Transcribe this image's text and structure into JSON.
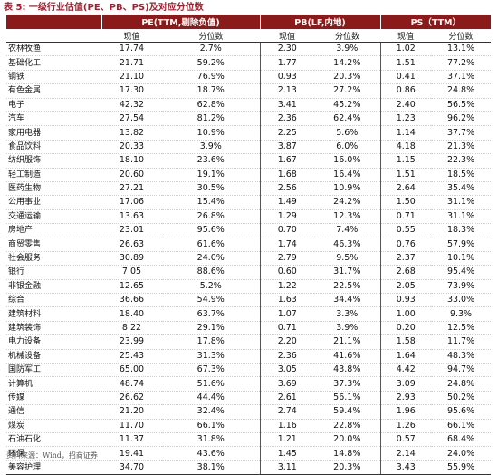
{
  "caption": "表 5: 一级行业估值(PE、PB、PS)及对应分位数",
  "headers": {
    "group_pe": "PE(TTM,剔除负值)",
    "group_pb": "PB(LF,内地)",
    "group_ps": "PS（TTM）",
    "sub_value": "现值",
    "sub_percentile": "分位数"
  },
  "rows": [
    {
      "industry": "农林牧渔",
      "pe": "17.74",
      "pe_pct": "2.7%",
      "pb": "2.30",
      "pb_pct": "3.9%",
      "ps": "1.02",
      "ps_pct": "13.1%"
    },
    {
      "industry": "基础化工",
      "pe": "21.71",
      "pe_pct": "59.2%",
      "pb": "1.77",
      "pb_pct": "14.2%",
      "ps": "1.51",
      "ps_pct": "77.2%"
    },
    {
      "industry": "钢铁",
      "pe": "21.10",
      "pe_pct": "76.9%",
      "pb": "0.93",
      "pb_pct": "20.3%",
      "ps": "0.41",
      "ps_pct": "37.1%"
    },
    {
      "industry": "有色金属",
      "pe": "17.30",
      "pe_pct": "18.7%",
      "pb": "2.13",
      "pb_pct": "27.2%",
      "ps": "0.86",
      "ps_pct": "24.8%"
    },
    {
      "industry": "电子",
      "pe": "42.32",
      "pe_pct": "62.8%",
      "pb": "3.41",
      "pb_pct": "45.2%",
      "ps": "2.40",
      "ps_pct": "56.5%"
    },
    {
      "industry": "汽车",
      "pe": "27.54",
      "pe_pct": "81.2%",
      "pb": "2.36",
      "pb_pct": "62.4%",
      "ps": "1.23",
      "ps_pct": "96.2%"
    },
    {
      "industry": "家用电器",
      "pe": "13.82",
      "pe_pct": "10.9%",
      "pb": "2.25",
      "pb_pct": "5.6%",
      "ps": "1.14",
      "ps_pct": "37.7%"
    },
    {
      "industry": "食品饮料",
      "pe": "20.33",
      "pe_pct": "3.9%",
      "pb": "3.87",
      "pb_pct": "6.0%",
      "ps": "4.18",
      "ps_pct": "21.3%"
    },
    {
      "industry": "纺织服饰",
      "pe": "18.10",
      "pe_pct": "23.6%",
      "pb": "1.67",
      "pb_pct": "16.0%",
      "ps": "1.15",
      "ps_pct": "22.3%"
    },
    {
      "industry": "轻工制造",
      "pe": "20.60",
      "pe_pct": "19.1%",
      "pb": "1.68",
      "pb_pct": "16.4%",
      "ps": "1.51",
      "ps_pct": "18.5%"
    },
    {
      "industry": "医药生物",
      "pe": "27.21",
      "pe_pct": "30.5%",
      "pb": "2.56",
      "pb_pct": "10.9%",
      "ps": "2.64",
      "ps_pct": "35.4%"
    },
    {
      "industry": "公用事业",
      "pe": "17.06",
      "pe_pct": "15.4%",
      "pb": "1.49",
      "pb_pct": "24.2%",
      "ps": "1.50",
      "ps_pct": "31.1%"
    },
    {
      "industry": "交通运输",
      "pe": "13.63",
      "pe_pct": "26.8%",
      "pb": "1.29",
      "pb_pct": "12.3%",
      "ps": "0.71",
      "ps_pct": "31.1%"
    },
    {
      "industry": "房地产",
      "pe": "23.01",
      "pe_pct": "95.6%",
      "pb": "0.70",
      "pb_pct": "7.4%",
      "ps": "0.55",
      "ps_pct": "18.3%"
    },
    {
      "industry": "商贸零售",
      "pe": "26.63",
      "pe_pct": "61.6%",
      "pb": "1.74",
      "pb_pct": "46.3%",
      "ps": "0.76",
      "ps_pct": "57.9%"
    },
    {
      "industry": "社会服务",
      "pe": "30.89",
      "pe_pct": "24.0%",
      "pb": "2.79",
      "pb_pct": "9.5%",
      "ps": "2.37",
      "ps_pct": "10.1%"
    },
    {
      "industry": "银行",
      "pe": "7.05",
      "pe_pct": "88.6%",
      "pb": "0.60",
      "pb_pct": "31.7%",
      "ps": "2.68",
      "ps_pct": "95.4%"
    },
    {
      "industry": "非银金融",
      "pe": "12.65",
      "pe_pct": "5.2%",
      "pb": "1.22",
      "pb_pct": "22.5%",
      "ps": "2.05",
      "ps_pct": "73.9%"
    },
    {
      "industry": "综合",
      "pe": "36.66",
      "pe_pct": "54.9%",
      "pb": "1.63",
      "pb_pct": "34.4%",
      "ps": "0.93",
      "ps_pct": "33.0%"
    },
    {
      "industry": "建筑材料",
      "pe": "18.40",
      "pe_pct": "63.7%",
      "pb": "1.07",
      "pb_pct": "3.3%",
      "ps": "1.00",
      "ps_pct": "9.3%"
    },
    {
      "industry": "建筑装饰",
      "pe": "8.22",
      "pe_pct": "29.1%",
      "pb": "0.71",
      "pb_pct": "3.9%",
      "ps": "0.20",
      "ps_pct": "12.5%"
    },
    {
      "industry": "电力设备",
      "pe": "23.99",
      "pe_pct": "17.8%",
      "pb": "2.20",
      "pb_pct": "21.1%",
      "ps": "1.58",
      "ps_pct": "11.7%"
    },
    {
      "industry": "机械设备",
      "pe": "25.43",
      "pe_pct": "31.3%",
      "pb": "2.36",
      "pb_pct": "41.6%",
      "ps": "1.64",
      "ps_pct": "48.3%"
    },
    {
      "industry": "国防军工",
      "pe": "65.00",
      "pe_pct": "67.3%",
      "pb": "3.05",
      "pb_pct": "43.8%",
      "ps": "4.42",
      "ps_pct": "94.7%"
    },
    {
      "industry": "计算机",
      "pe": "48.74",
      "pe_pct": "51.6%",
      "pb": "3.69",
      "pb_pct": "37.3%",
      "ps": "3.09",
      "ps_pct": "24.8%"
    },
    {
      "industry": "传媒",
      "pe": "26.62",
      "pe_pct": "44.4%",
      "pb": "2.61",
      "pb_pct": "56.1%",
      "ps": "2.93",
      "ps_pct": "50.2%"
    },
    {
      "industry": "通信",
      "pe": "21.20",
      "pe_pct": "32.4%",
      "pb": "2.74",
      "pb_pct": "59.4%",
      "ps": "1.96",
      "ps_pct": "95.6%"
    },
    {
      "industry": "煤炭",
      "pe": "11.70",
      "pe_pct": "66.1%",
      "pb": "1.16",
      "pb_pct": "22.8%",
      "ps": "1.26",
      "ps_pct": "66.1%"
    },
    {
      "industry": "石油石化",
      "pe": "11.37",
      "pe_pct": "31.8%",
      "pb": "1.21",
      "pb_pct": "20.0%",
      "ps": "0.57",
      "ps_pct": "68.4%"
    },
    {
      "industry": "环保",
      "pe": "19.41",
      "pe_pct": "43.6%",
      "pb": "1.45",
      "pb_pct": "14.8%",
      "ps": "2.14",
      "ps_pct": "24.0%"
    },
    {
      "industry": "美容护理",
      "pe": "34.70",
      "pe_pct": "38.1%",
      "pb": "3.11",
      "pb_pct": "20.3%",
      "ps": "3.43",
      "ps_pct": "55.9%"
    }
  ],
  "source": "资料来源：Wind，招商证券"
}
